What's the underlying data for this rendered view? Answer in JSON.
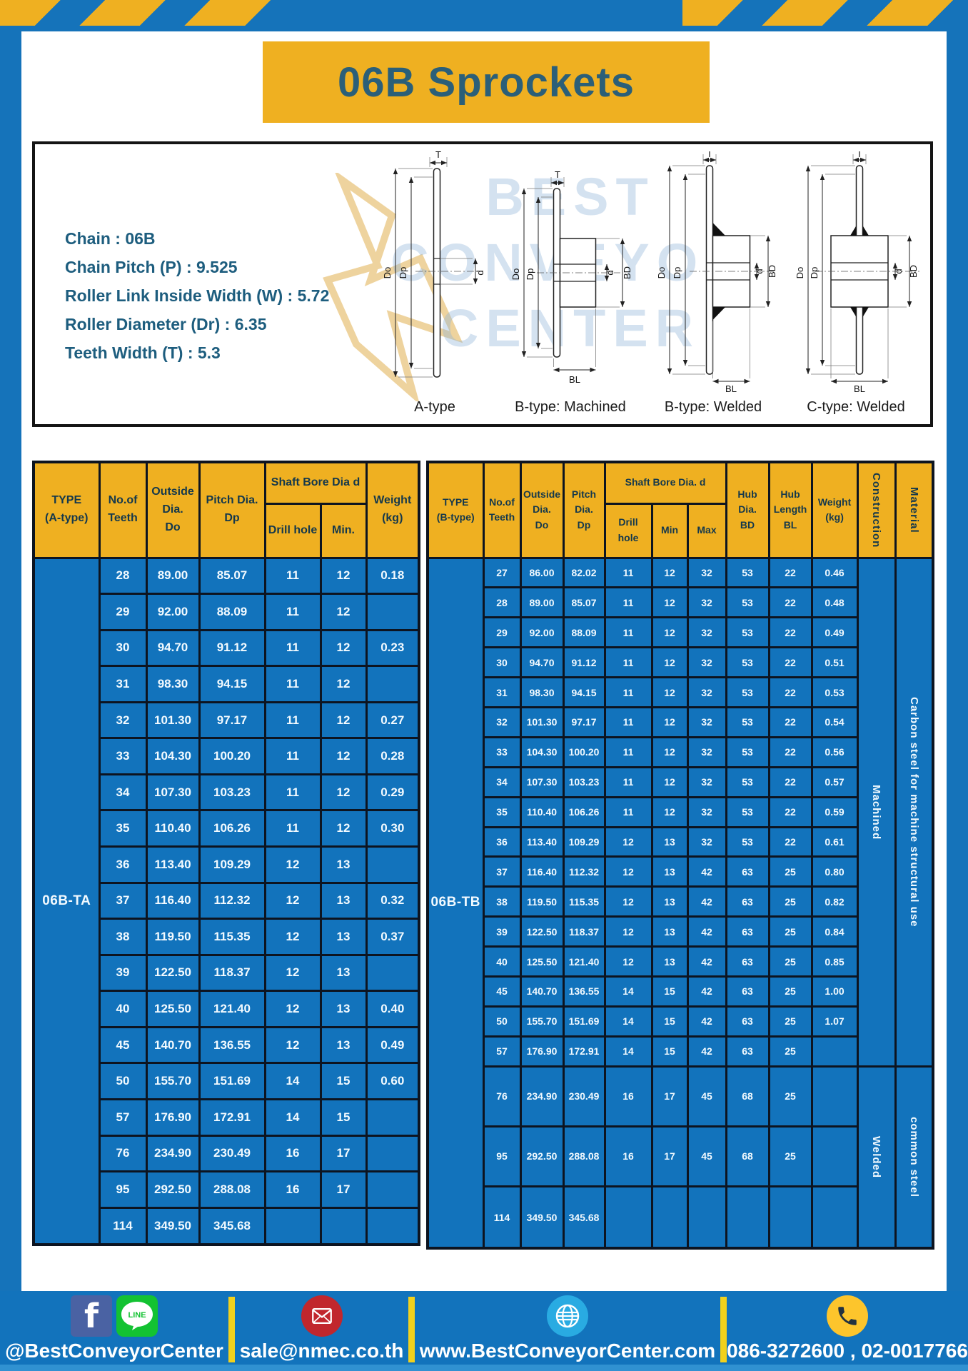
{
  "page": {
    "title": "06B Sprockets"
  },
  "colors": {
    "page_blue": "#1573ba",
    "cell_blue": "#1273bc",
    "accent_yellow": "#efb021",
    "border_dark": "#0d1420",
    "title_teal": "#2b5f78",
    "facebook_blue": "#4a62a3",
    "line_green": "#13c232",
    "email_red": "#c1272d",
    "globe_blue": "#29abe2",
    "phone_yellow": "#fdc52c"
  },
  "specs": {
    "lines": [
      "Chain  : 06B",
      "Chain Pitch (P)  :  9.525",
      "Roller Link Inside Width (W)  :  5.72",
      "Roller Diameter (Dr)  : 6.35",
      "Teeth Width (T)  :  5.3"
    ]
  },
  "diagrams": {
    "captions": [
      "A-type",
      "B-type: Machined",
      "B-type: Welded",
      "C-type: Welded"
    ],
    "labels": {
      "t": "T",
      "do": "Do",
      "dp": "Dp",
      "d": "d",
      "bd": "BD",
      "bl": "BL"
    },
    "watermark": [
      "BEST",
      "CONVEYOR",
      "CENTER"
    ]
  },
  "left_table": {
    "type_label": "06B-TA",
    "headers": {
      "type": "TYPE\n(A-type)",
      "teeth": "No.of\nTeeth",
      "outside": "Outside\nDia.\nDo",
      "pitch": "Pitch Dia.\nDp",
      "shaft_bore": "Shaft Bore Dia d",
      "drill": "Drill hole",
      "min": "Min.",
      "weight": "Weight\n(kg)"
    },
    "rows": [
      [
        "28",
        "89.00",
        "85.07",
        "11",
        "12",
        "0.18"
      ],
      [
        "29",
        "92.00",
        "88.09",
        "11",
        "12",
        ""
      ],
      [
        "30",
        "94.70",
        "91.12",
        "11",
        "12",
        "0.23"
      ],
      [
        "31",
        "98.30",
        "94.15",
        "11",
        "12",
        ""
      ],
      [
        "32",
        "101.30",
        "97.17",
        "11",
        "12",
        "0.27"
      ],
      [
        "33",
        "104.30",
        "100.20",
        "11",
        "12",
        "0.28"
      ],
      [
        "34",
        "107.30",
        "103.23",
        "11",
        "12",
        "0.29"
      ],
      [
        "35",
        "110.40",
        "106.26",
        "11",
        "12",
        "0.30"
      ],
      [
        "36",
        "113.40",
        "109.29",
        "12",
        "13",
        ""
      ],
      [
        "37",
        "116.40",
        "112.32",
        "12",
        "13",
        "0.32"
      ],
      [
        "38",
        "119.50",
        "115.35",
        "12",
        "13",
        "0.37"
      ],
      [
        "39",
        "122.50",
        "118.37",
        "12",
        "13",
        ""
      ],
      [
        "40",
        "125.50",
        "121.40",
        "12",
        "13",
        "0.40"
      ],
      [
        "45",
        "140.70",
        "136.55",
        "12",
        "13",
        "0.49"
      ],
      [
        "50",
        "155.70",
        "151.69",
        "14",
        "15",
        "0.60"
      ],
      [
        "57",
        "176.90",
        "172.91",
        "14",
        "15",
        ""
      ],
      [
        "76",
        "234.90",
        "230.49",
        "16",
        "17",
        ""
      ],
      [
        "95",
        "292.50",
        "288.08",
        "16",
        "17",
        ""
      ],
      [
        "114",
        "349.50",
        "345.68",
        "",
        "",
        ""
      ]
    ]
  },
  "right_table": {
    "type_label": "06B-TB",
    "headers": {
      "type": "TYPE\n(B-type)",
      "teeth": "No.of\nTeeth",
      "outside": "Outside\nDia.\nDo",
      "pitch": "Pitch\nDia.\nDp",
      "shaft_bore": "Shaft Bore Dia. d",
      "drill": "Drill hole",
      "min": "Min",
      "max": "Max",
      "hub_dia": "Hub\nDia.\nBD",
      "hub_len": "Hub\nLength\nBL",
      "weight": "Weight\n(kg)",
      "construction": "Construction",
      "material": "Material"
    },
    "rows": [
      [
        "27",
        "86.00",
        "82.02",
        "11",
        "12",
        "32",
        "53",
        "22",
        "0.46"
      ],
      [
        "28",
        "89.00",
        "85.07",
        "11",
        "12",
        "32",
        "53",
        "22",
        "0.48"
      ],
      [
        "29",
        "92.00",
        "88.09",
        "11",
        "12",
        "32",
        "53",
        "22",
        "0.49"
      ],
      [
        "30",
        "94.70",
        "91.12",
        "11",
        "12",
        "32",
        "53",
        "22",
        "0.51"
      ],
      [
        "31",
        "98.30",
        "94.15",
        "11",
        "12",
        "32",
        "53",
        "22",
        "0.53"
      ],
      [
        "32",
        "101.30",
        "97.17",
        "11",
        "12",
        "32",
        "53",
        "22",
        "0.54"
      ],
      [
        "33",
        "104.30",
        "100.20",
        "11",
        "12",
        "32",
        "53",
        "22",
        "0.56"
      ],
      [
        "34",
        "107.30",
        "103.23",
        "11",
        "12",
        "32",
        "53",
        "22",
        "0.57"
      ],
      [
        "35",
        "110.40",
        "106.26",
        "11",
        "12",
        "32",
        "53",
        "22",
        "0.59"
      ],
      [
        "36",
        "113.40",
        "109.29",
        "12",
        "13",
        "32",
        "53",
        "22",
        "0.61"
      ],
      [
        "37",
        "116.40",
        "112.32",
        "12",
        "13",
        "42",
        "63",
        "25",
        "0.80"
      ],
      [
        "38",
        "119.50",
        "115.35",
        "12",
        "13",
        "42",
        "63",
        "25",
        "0.82"
      ],
      [
        "39",
        "122.50",
        "118.37",
        "12",
        "13",
        "42",
        "63",
        "25",
        "0.84"
      ],
      [
        "40",
        "125.50",
        "121.40",
        "12",
        "13",
        "42",
        "63",
        "25",
        "0.85"
      ],
      [
        "45",
        "140.70",
        "136.55",
        "14",
        "15",
        "42",
        "63",
        "25",
        "1.00"
      ],
      [
        "50",
        "155.70",
        "151.69",
        "14",
        "15",
        "42",
        "63",
        "25",
        "1.07"
      ],
      [
        "57",
        "176.90",
        "172.91",
        "14",
        "15",
        "42",
        "63",
        "25",
        ""
      ],
      [
        "76",
        "234.90",
        "230.49",
        "16",
        "17",
        "45",
        "68",
        "25",
        ""
      ],
      [
        "95",
        "292.50",
        "288.08",
        "16",
        "17",
        "45",
        "68",
        "25",
        ""
      ],
      [
        "114",
        "349.50",
        "345.68",
        "",
        "",
        "",
        "",
        "",
        ""
      ]
    ],
    "construction_groups": [
      {
        "label": "Machined",
        "span": 17
      },
      {
        "label": "Welded",
        "span": 3
      }
    ],
    "material_groups": [
      {
        "label": "Carbon steel for machine structural use",
        "span": 17
      },
      {
        "label": "common steel",
        "span": 3
      }
    ]
  },
  "footer": {
    "facebook_label": "f",
    "line_label": "LINE",
    "social_handle": "@BestConveyorCenter",
    "email": "sale@nmec.co.th",
    "website": "www.BestConveyorCenter.com",
    "phones": "086-3272600 , 02-0017766"
  }
}
